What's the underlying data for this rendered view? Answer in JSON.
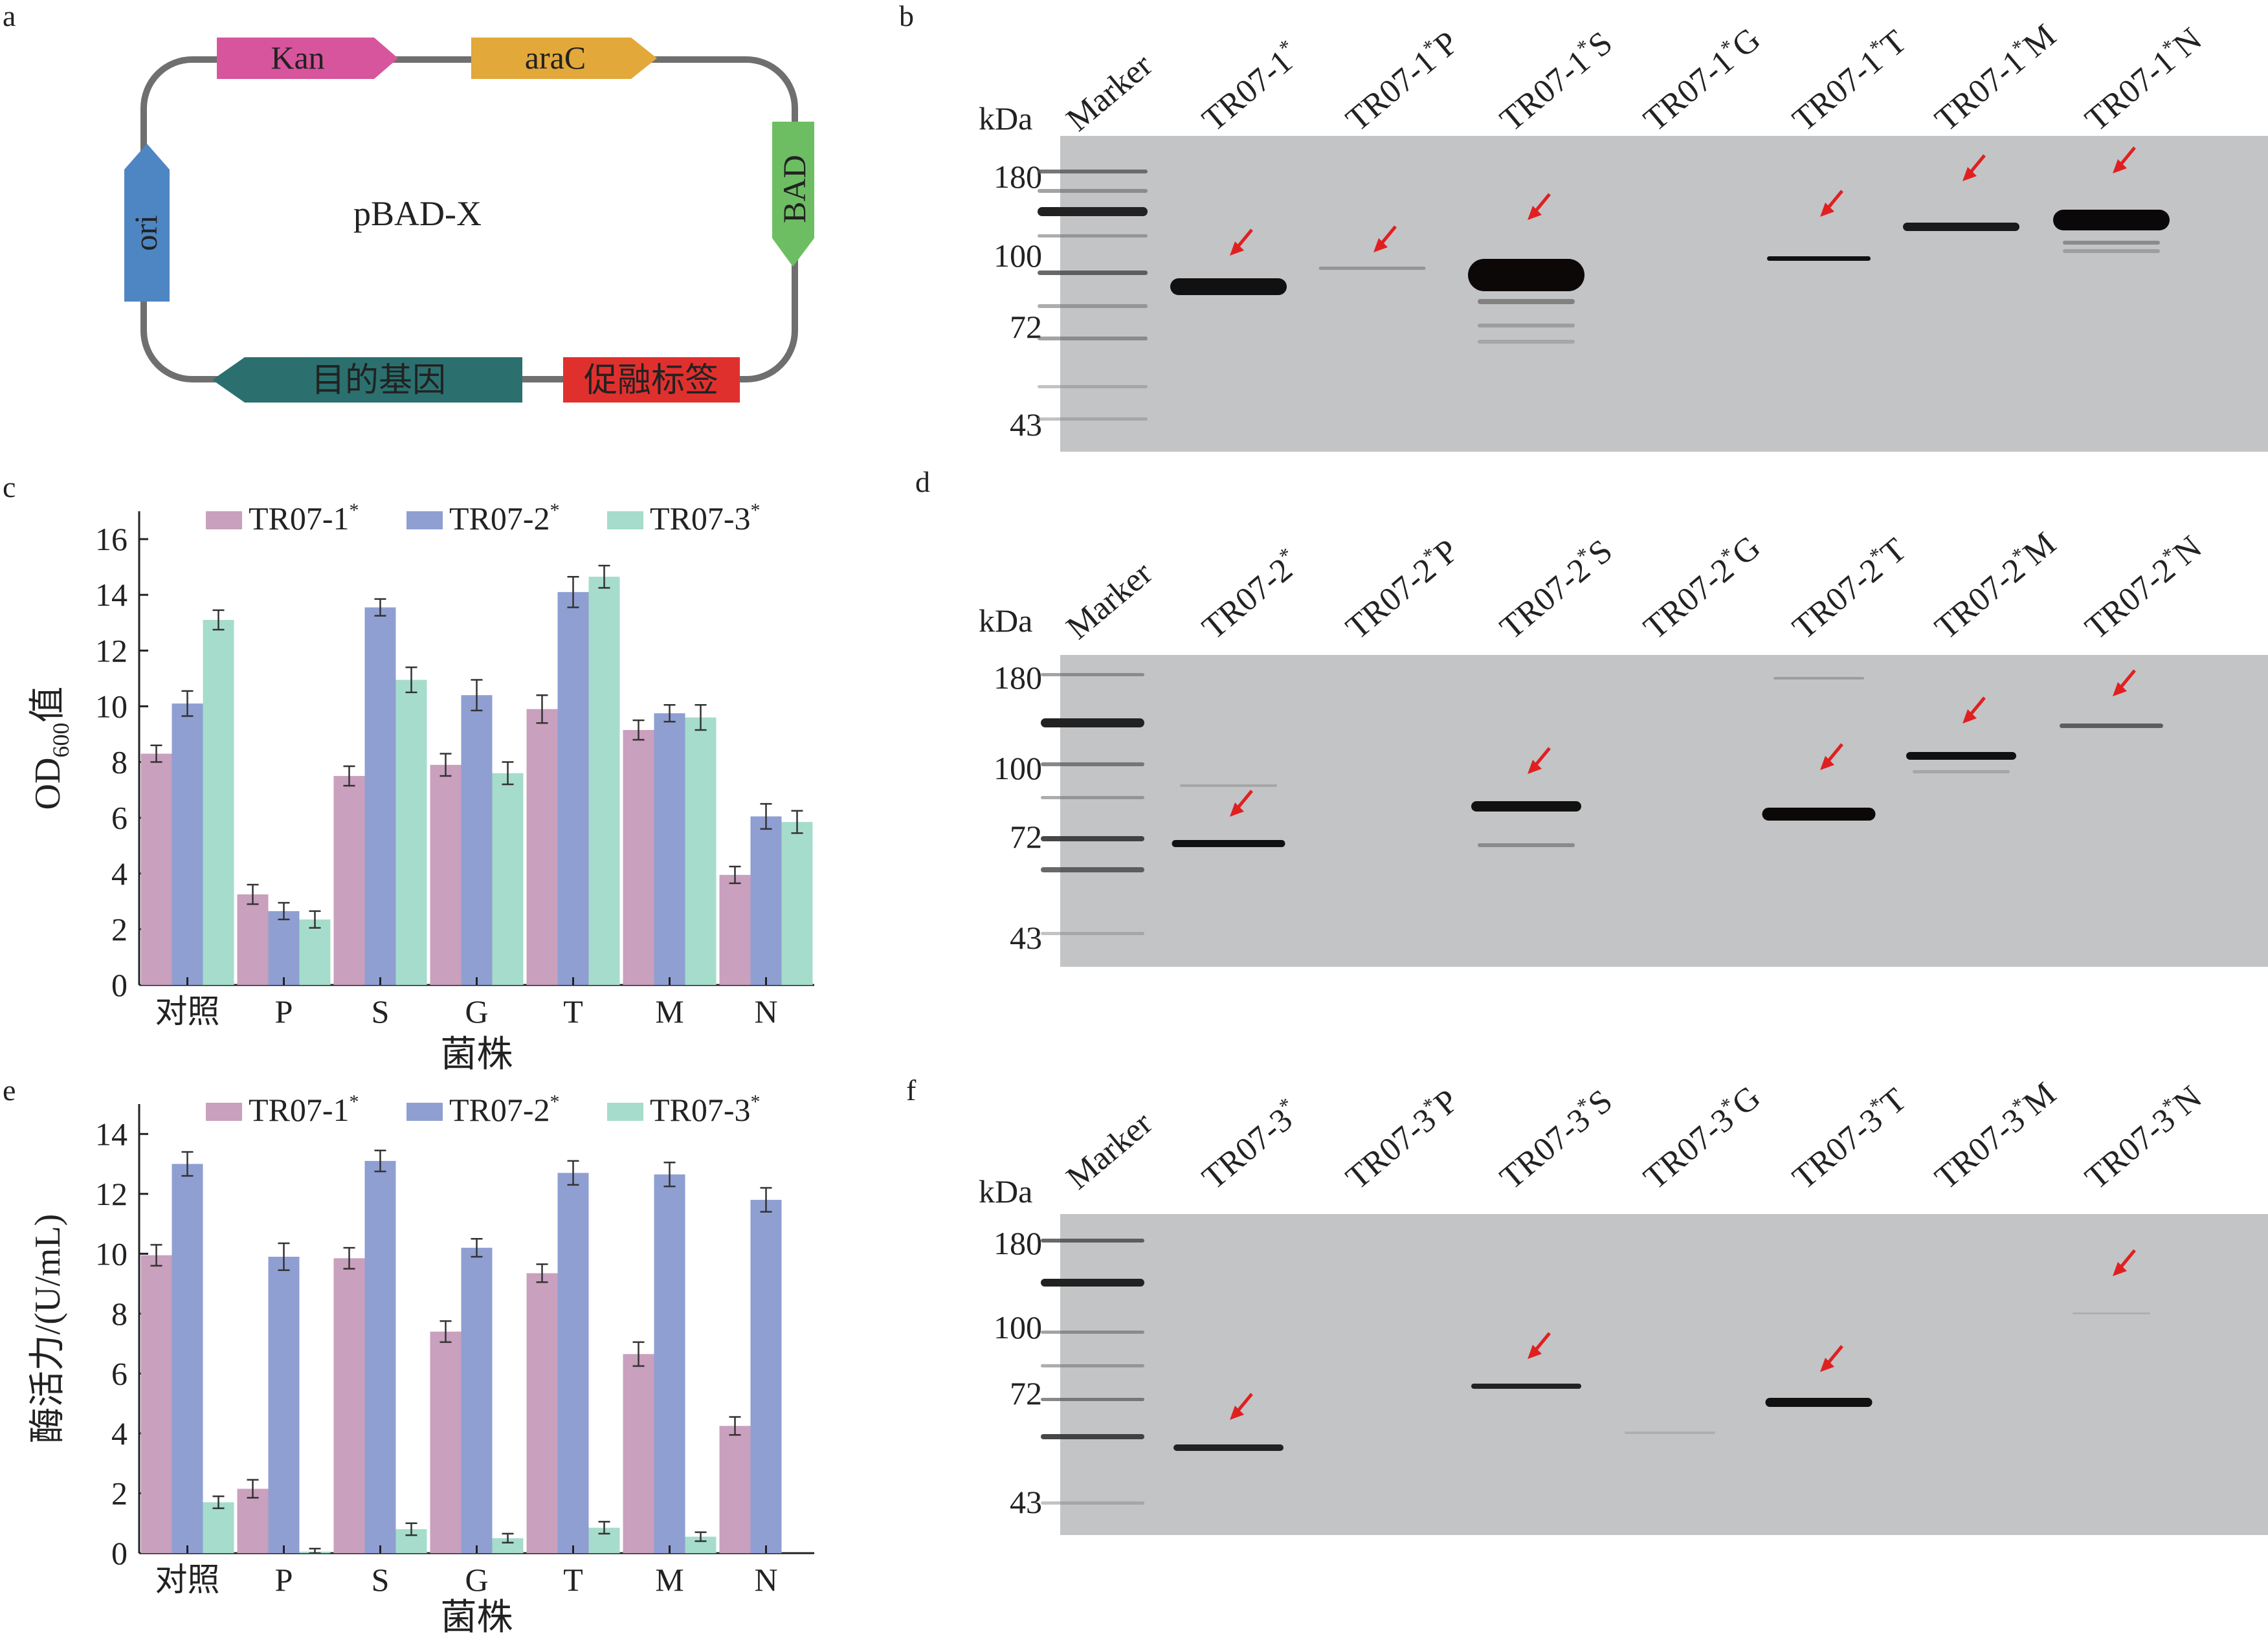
{
  "panel_letters": {
    "a": "a",
    "b": "b",
    "c": "c",
    "d": "d",
    "e": "e",
    "f": "f"
  },
  "plasmid": {
    "center_label": "pBAD-X",
    "features": {
      "kan": {
        "label": "Kan",
        "color": "#d7559c"
      },
      "arac": {
        "label": "araC",
        "color": "#e2a83a"
      },
      "bad": {
        "label": "BAD",
        "color": "#6dbe63"
      },
      "ori": {
        "label": "ori",
        "color": "#4e86c4"
      },
      "gene": {
        "label": "目的基因",
        "color": "#2b706f"
      },
      "tag": {
        "label": "促融标签",
        "color": "#e0302e"
      }
    }
  },
  "gel_common": {
    "unit_label": "kDa",
    "mw_ticks": [
      "180",
      "100",
      "72",
      "43"
    ],
    "arrow_color": "#e02020"
  },
  "gel_b": {
    "lanes": [
      {
        "pre": "Marker",
        "sup": "",
        "post": ""
      },
      {
        "pre": "TR07-1",
        "sup": "*",
        "post": ""
      },
      {
        "pre": "TR07-1",
        "sup": "*",
        "post": "P"
      },
      {
        "pre": "TR07-1",
        "sup": "*",
        "post": "S"
      },
      {
        "pre": "TR07-1",
        "sup": "*",
        "post": "G"
      },
      {
        "pre": "TR07-1",
        "sup": "*",
        "post": "T"
      },
      {
        "pre": "TR07-1",
        "sup": "*",
        "post": "M"
      },
      {
        "pre": "TR07-1",
        "sup": "*",
        "post": "N"
      }
    ]
  },
  "gel_d": {
    "lanes": [
      {
        "pre": "Marker",
        "sup": "",
        "post": ""
      },
      {
        "pre": "TR07-2",
        "sup": "*",
        "post": ""
      },
      {
        "pre": "TR07-2",
        "sup": "*",
        "post": "P"
      },
      {
        "pre": "TR07-2",
        "sup": "*",
        "post": "S"
      },
      {
        "pre": "TR07-2",
        "sup": "*",
        "post": "G"
      },
      {
        "pre": "TR07-2",
        "sup": "*",
        "post": "T"
      },
      {
        "pre": "TR07-2",
        "sup": "*",
        "post": "M"
      },
      {
        "pre": "TR07-2",
        "sup": "*",
        "post": "N"
      }
    ]
  },
  "gel_f": {
    "lanes": [
      {
        "pre": "Marker",
        "sup": "",
        "post": ""
      },
      {
        "pre": "TR07-3",
        "sup": "*",
        "post": ""
      },
      {
        "pre": "TR07-3",
        "sup": "*",
        "post": "P"
      },
      {
        "pre": "TR07-3",
        "sup": "*",
        "post": "S"
      },
      {
        "pre": "TR07-3",
        "sup": "*",
        "post": "G"
      },
      {
        "pre": "TR07-3",
        "sup": "*",
        "post": "T"
      },
      {
        "pre": "TR07-3",
        "sup": "*",
        "post": "M"
      },
      {
        "pre": "TR07-3",
        "sup": "*",
        "post": "N"
      }
    ]
  },
  "chart_data": [
    {
      "panel": "c",
      "type": "bar",
      "categories": [
        "对照",
        "P",
        "S",
        "G",
        "T",
        "M",
        "N"
      ],
      "xlabel": "菌株",
      "ylabel": {
        "main": "OD",
        "sub": "600",
        "suffix": "值"
      },
      "ylim": [
        0,
        17
      ],
      "yticks": [
        0,
        2,
        4,
        6,
        8,
        10,
        12,
        14,
        16
      ],
      "colors": [
        "#c9a0bd",
        "#8f9fd2",
        "#a6dccb"
      ],
      "series": [
        {
          "name": "TR07-1",
          "sup": "*",
          "values": [
            8.3,
            3.25,
            7.5,
            7.9,
            9.9,
            9.15,
            3.95
          ],
          "errors": [
            0.3,
            0.35,
            0.35,
            0.4,
            0.5,
            0.35,
            0.3
          ]
        },
        {
          "name": "TR07-2",
          "sup": "*",
          "values": [
            10.1,
            2.65,
            13.55,
            10.4,
            14.1,
            9.75,
            6.05
          ],
          "errors": [
            0.45,
            0.3,
            0.3,
            0.55,
            0.55,
            0.3,
            0.45
          ]
        },
        {
          "name": "TR07-3",
          "sup": "*",
          "values": [
            13.1,
            2.35,
            10.95,
            7.6,
            14.65,
            9.6,
            5.85
          ],
          "errors": [
            0.35,
            0.3,
            0.45,
            0.4,
            0.4,
            0.45,
            0.4
          ]
        }
      ]
    },
    {
      "panel": "e",
      "type": "bar",
      "categories": [
        "对照",
        "P",
        "S",
        "G",
        "T",
        "M",
        "N"
      ],
      "xlabel": "菌株",
      "ylabel": {
        "main": "酶活力/(U/mL)",
        "sub": "",
        "suffix": ""
      },
      "ylim": [
        0,
        15
      ],
      "yticks": [
        0,
        2,
        4,
        6,
        8,
        10,
        12,
        14
      ],
      "colors": [
        "#c9a0bd",
        "#8f9fd2",
        "#a6dccb"
      ],
      "series": [
        {
          "name": "TR07-1",
          "sup": "*",
          "values": [
            9.95,
            2.15,
            9.85,
            7.4,
            9.35,
            6.65,
            4.25
          ],
          "errors": [
            0.35,
            0.3,
            0.35,
            0.35,
            0.3,
            0.4,
            0.3
          ]
        },
        {
          "name": "TR07-2",
          "sup": "*",
          "values": [
            13.0,
            9.9,
            13.1,
            10.2,
            12.7,
            12.65,
            11.8
          ],
          "errors": [
            0.4,
            0.45,
            0.35,
            0.3,
            0.4,
            0.4,
            0.4
          ]
        },
        {
          "name": "TR07-3",
          "sup": "*",
          "values": [
            1.7,
            0.05,
            0.8,
            0.5,
            0.85,
            0.55,
            0.0
          ],
          "errors": [
            0.2,
            0.1,
            0.2,
            0.15,
            0.2,
            0.15,
            0.0
          ]
        }
      ]
    }
  ]
}
